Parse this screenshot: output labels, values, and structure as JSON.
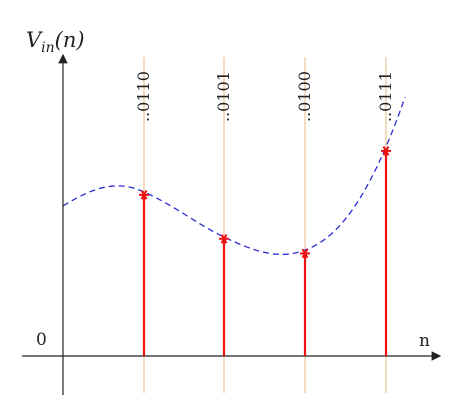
{
  "y_axis_label": {
    "main": "V",
    "sub": "in",
    "arg": "(n)"
  },
  "x_axis_label": "n",
  "origin_label": "0",
  "samples": [
    {
      "code": "..0110",
      "value": 0.55
    },
    {
      "code": "..0101",
      "value": 0.4
    },
    {
      "code": "..0100",
      "value": 0.35
    },
    {
      "code": "..0111",
      "value": 0.7
    }
  ],
  "colors": {
    "axis": "#222222",
    "curve": "#2b2bd6",
    "stem": "#ee1111",
    "marker": "#ee1111",
    "guide": "#e8b987"
  }
}
